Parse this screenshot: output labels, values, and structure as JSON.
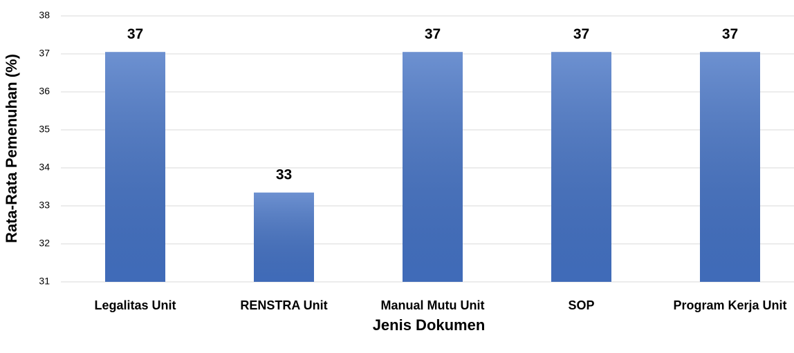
{
  "chart_data": {
    "type": "bar",
    "x_label": "Jenis Dokumen",
    "y_label": "Rata-Rata Pemenuhan (%)",
    "categories": [
      "Legalitas Unit",
      "RENSTRA Unit",
      "Manual Mutu Unit",
      "SOP",
      "Program Kerja Unit"
    ],
    "values": [
      37.05,
      33.35,
      37.05,
      37.05,
      37.05
    ],
    "value_labels": [
      "37",
      "33",
      "37",
      "37",
      "37"
    ],
    "color": "#4472c4",
    "ylim": [
      31,
      38
    ],
    "yticks": [
      31,
      32,
      33,
      34,
      35,
      36,
      37,
      38
    ],
    "grid": true
  }
}
